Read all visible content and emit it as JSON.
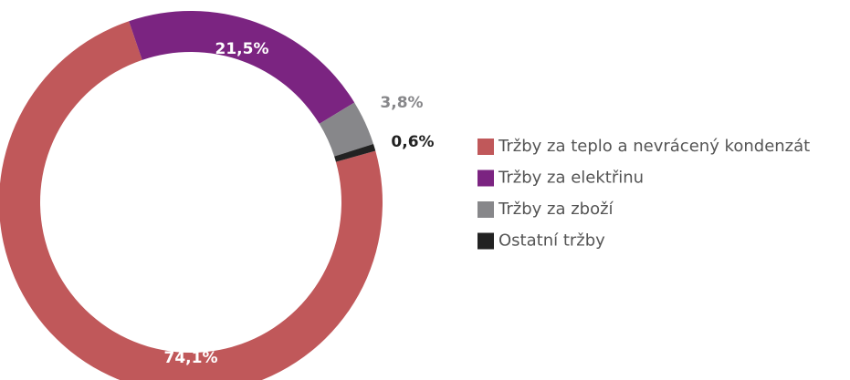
{
  "chart_data": {
    "type": "donut",
    "categories": [
      "Tržby za teplo a nevrácený kondenzát",
      "Tržby za elektřinu",
      "Tržby za zboží",
      "Ostatní tržby"
    ],
    "values": [
      74.1,
      21.5,
      3.8,
      0.6
    ],
    "value_labels": [
      "74,1%",
      "21,5%",
      "3,8%",
      "0,6%"
    ],
    "colors": [
      "#c0585a",
      "#7b2481",
      "#87878a",
      "#222222"
    ],
    "legend": "right"
  }
}
